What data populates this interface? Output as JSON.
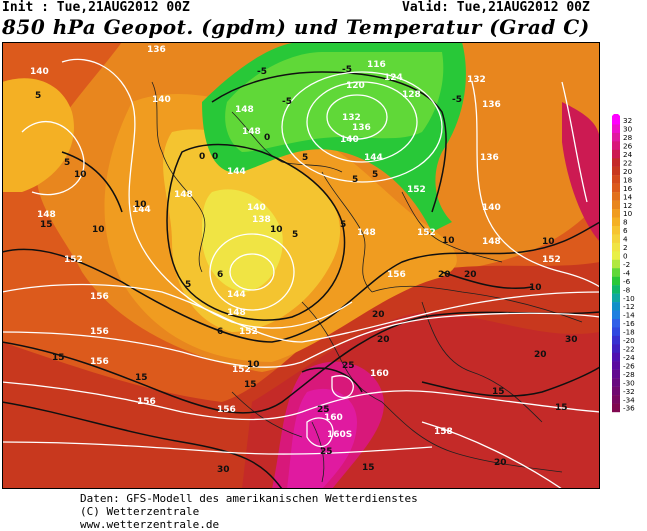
{
  "header": {
    "init": "Init : Tue,21AUG2012 00Z",
    "valid": "Valid: Tue,21AUG2012 00Z",
    "title": "850 hPa Geopot. (gpdm) und Temperatur (Grad C)"
  },
  "colors": {
    "cold_green": "#2ed84a",
    "yellow": "#f4d43c",
    "orange": "#f2a420",
    "dark_orange": "#e2721c",
    "red": "#c8321e",
    "pink": "#e0207c"
  },
  "scale": {
    "values": [
      "32",
      "30",
      "28",
      "26",
      "24",
      "22",
      "20",
      "18",
      "16",
      "14",
      "12",
      "10",
      "8",
      "6",
      "4",
      "2",
      "0",
      "-2",
      "-4",
      "-6",
      "-8",
      "-10",
      "-12",
      "-14",
      "-16",
      "-18",
      "-20",
      "-22",
      "-24",
      "-26",
      "-28",
      "-30",
      "-32",
      "-34",
      "-36"
    ],
    "colors": [
      "#ff00ff",
      "#ee10cc",
      "#e01aa0",
      "#d8187a",
      "#cc1a52",
      "#c42a28",
      "#c8381e",
      "#d44a1c",
      "#dc5a1c",
      "#e2701c",
      "#e8861e",
      "#f09c20",
      "#f4b024",
      "#f6c430",
      "#f4d43c",
      "#f0e444",
      "#e8f048",
      "#b0e840",
      "#60d838",
      "#28c838",
      "#10b868",
      "#10a8a0",
      "#1090c8",
      "#2080e0",
      "#3060e8",
      "#3048e0",
      "#3830d0",
      "#4020c0",
      "#5010b0",
      "#5a0aa0",
      "#620890",
      "#680880",
      "#700870",
      "#780860",
      "#800850"
    ]
  },
  "geopotential_labels": [
    {
      "v": "136"
    },
    {
      "v": "140"
    },
    {
      "v": "140"
    },
    {
      "v": "148"
    },
    {
      "v": "148"
    },
    {
      "v": "116"
    },
    {
      "v": "120"
    },
    {
      "v": "124"
    },
    {
      "v": "128"
    },
    {
      "v": "132"
    },
    {
      "v": "136"
    },
    {
      "v": "132"
    },
    {
      "v": "136"
    },
    {
      "v": "140"
    },
    {
      "v": "144"
    },
    {
      "v": "136"
    },
    {
      "v": "144"
    },
    {
      "v": "148"
    },
    {
      "v": "144"
    },
    {
      "v": "140"
    },
    {
      "v": "138"
    },
    {
      "v": "148"
    },
    {
      "v": "152"
    },
    {
      "v": "152"
    },
    {
      "v": "148"
    },
    {
      "v": "152"
    },
    {
      "v": "156"
    },
    {
      "v": "156"
    },
    {
      "v": "144"
    },
    {
      "v": "148"
    },
    {
      "v": "152"
    },
    {
      "v": "152"
    },
    {
      "v": "156"
    },
    {
      "v": "156"
    },
    {
      "v": "156"
    },
    {
      "v": "156"
    },
    {
      "v": "160"
    },
    {
      "v": "160"
    },
    {
      "v": "160S"
    },
    {
      "v": "158"
    },
    {
      "v": "140"
    },
    {
      "v": "148"
    },
    {
      "v": "152"
    }
  ],
  "temperature_labels": [
    {
      "v": "5"
    },
    {
      "v": "5"
    },
    {
      "v": "0"
    },
    {
      "v": "0"
    },
    {
      "v": "-5"
    },
    {
      "v": "-5"
    },
    {
      "v": "-5"
    },
    {
      "v": "-5"
    },
    {
      "v": "0"
    },
    {
      "v": "5"
    },
    {
      "v": "5"
    },
    {
      "v": "5"
    },
    {
      "v": "5"
    },
    {
      "v": "5"
    },
    {
      "v": "10"
    },
    {
      "v": "10"
    },
    {
      "v": "10"
    },
    {
      "v": "15"
    },
    {
      "v": "15"
    },
    {
      "v": "10"
    },
    {
      "v": "15"
    },
    {
      "v": "15"
    },
    {
      "v": "20"
    },
    {
      "v": "20"
    },
    {
      "v": "20"
    },
    {
      "v": "20"
    },
    {
      "v": "20"
    },
    {
      "v": "25"
    },
    {
      "v": "25"
    },
    {
      "v": "25"
    },
    {
      "v": "30"
    },
    {
      "v": "30"
    },
    {
      "v": "20"
    },
    {
      "v": "15"
    },
    {
      "v": "10"
    },
    {
      "v": "10"
    },
    {
      "v": "10"
    },
    {
      "v": "5"
    },
    {
      "v": "6"
    },
    {
      "v": "6"
    },
    {
      "v": "10"
    },
    {
      "v": "15"
    },
    {
      "v": "15"
    }
  ],
  "footer": {
    "line1": "Daten: GFS-Modell des amerikanischen Wetterdienstes",
    "line2": "(C) Wetterzentrale",
    "line3": "www.wetterzentrale.de"
  }
}
